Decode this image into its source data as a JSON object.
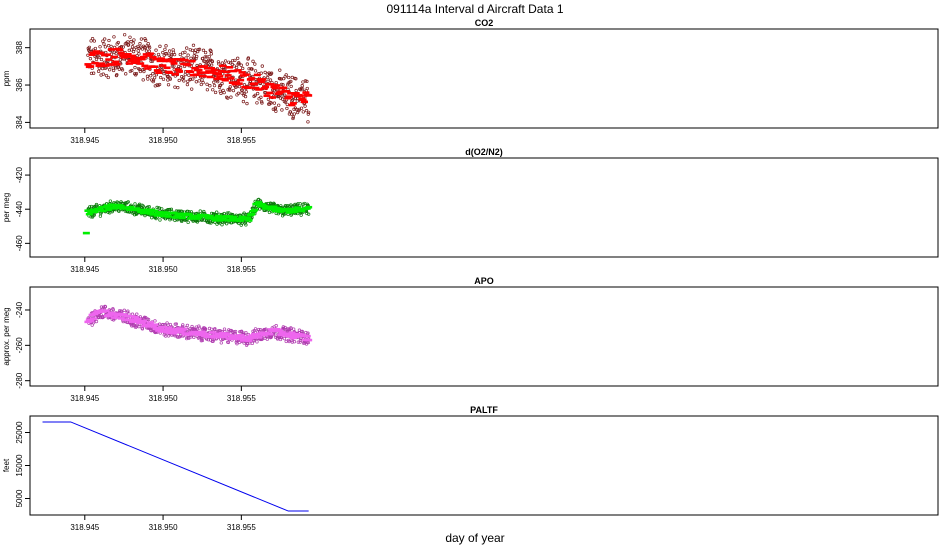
{
  "main_title": "091114a   Interval d Aircraft Data 1",
  "xlabel": "day of year",
  "chart_data": [
    {
      "type": "scatter",
      "title": "CO2",
      "ylabel": "ppm",
      "xlim": [
        318.9415,
        318.9995
      ],
      "ylim": [
        383.7,
        389.0
      ],
      "x_ticks": [
        "318.945",
        "318.950",
        "318.955"
      ],
      "y_ticks": [
        384,
        386,
        388
      ],
      "colors": {
        "raw": "#7a1a1a",
        "avg": "#ff0000"
      },
      "series": [
        {
          "trend": [
            [
              318.9452,
              387.4
            ],
            [
              318.948,
              387.6
            ],
            [
              318.95,
              387.0
            ],
            [
              318.953,
              386.8
            ],
            [
              318.956,
              386.1
            ],
            [
              318.958,
              385.4
            ],
            [
              318.9593,
              385.2
            ]
          ]
        }
      ],
      "noise": 1.0
    },
    {
      "type": "scatter",
      "title": "d(O2/N2)",
      "ylabel": "per meg",
      "xlim": [
        318.9415,
        318.9995
      ],
      "ylim": [
        -468,
        -410
      ],
      "x_ticks": [
        "318.945",
        "318.950",
        "318.955"
      ],
      "y_ticks": [
        -460,
        -440,
        -420
      ],
      "colors": {
        "raw": "#0a7a0a",
        "avg": "#00ee00"
      },
      "series": [
        {
          "trend": [
            [
              318.9452,
              -442
            ],
            [
              318.947,
              -438
            ],
            [
              318.95,
              -443
            ],
            [
              318.953,
              -445
            ],
            [
              318.9555,
              -446
            ],
            [
              318.956,
              -437
            ],
            [
              318.9575,
              -441
            ],
            [
              318.9593,
              -440
            ]
          ]
        }
      ],
      "noise": 3.0,
      "first_point": [
        318.9451,
        -454
      ]
    },
    {
      "type": "scatter",
      "title": "APO",
      "ylabel": "approx. per meg",
      "xlim": [
        318.9415,
        318.9995
      ],
      "ylim": [
        -283,
        -227
      ],
      "x_ticks": [
        "318.945",
        "318.950",
        "318.955"
      ],
      "y_ticks": [
        -280,
        -260,
        -240
      ],
      "colors": {
        "raw": "#b03cb0",
        "avg": "#ee66ee"
      },
      "series": [
        {
          "trend": [
            [
              318.9452,
              -246
            ],
            [
              318.946,
              -241
            ],
            [
              318.948,
              -245
            ],
            [
              318.95,
              -251
            ],
            [
              318.953,
              -254
            ],
            [
              318.9555,
              -256
            ],
            [
              318.957,
              -252
            ],
            [
              318.9593,
              -256
            ]
          ]
        }
      ],
      "noise": 3.5
    },
    {
      "type": "line",
      "title": "PALTF",
      "ylabel": "feet",
      "xlim": [
        318.9415,
        318.9995
      ],
      "ylim": [
        0,
        30000
      ],
      "x_ticks": [
        "318.945",
        "318.950",
        "318.955"
      ],
      "y_ticks": [
        5000,
        15000,
        25000
      ],
      "colors": {
        "line": "#0000ee"
      },
      "series": [
        {
          "x": [
            318.9423,
            318.9441,
            318.958,
            318.9593
          ],
          "y": [
            28200,
            28200,
            1200,
            1200
          ]
        }
      ]
    }
  ]
}
